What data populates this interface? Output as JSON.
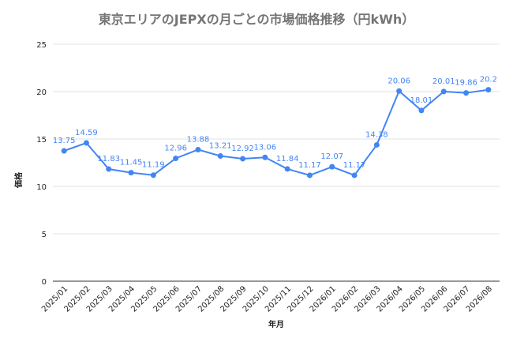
{
  "chart_data": {
    "type": "line",
    "title": "東京エリアのJEPXの月ごとの市場価格推移（円kWh）",
    "xlabel": "年月",
    "ylabel": "価格",
    "ylim": [
      0,
      25
    ],
    "yticks": [
      0,
      5,
      10,
      15,
      20,
      25
    ],
    "grid": true,
    "categories": [
      "2025/01",
      "2025/02",
      "2025/03",
      "2025/04",
      "2025/05",
      "2025/06",
      "2025/07",
      "2025/08",
      "2025/09",
      "2025/10",
      "2025/11",
      "2025/12",
      "2026/01",
      "2026/02",
      "2026/03",
      "2026/04",
      "2026/05",
      "2026/06",
      "2026/07",
      "2026/08"
    ],
    "series": [
      {
        "values": [
          13.75,
          14.59,
          11.83,
          11.45,
          11.19,
          12.96,
          13.88,
          13.21,
          12.92,
          13.06,
          11.84,
          11.17,
          12.07,
          11.17,
          14.38,
          20.06,
          18.01,
          20.01,
          19.86,
          20.2
        ],
        "labels": [
          "13.75",
          "14.59",
          "11.83",
          "11.45",
          "11.19",
          "12.96",
          "13.88",
          "13.21",
          "12.92",
          "13.06",
          "11.84",
          "11.17",
          "12.07",
          "11.17",
          "14.38",
          "20.06",
          "18.01",
          "20.01",
          "19.86",
          "20.2"
        ],
        "color": "#4285f4"
      }
    ]
  }
}
